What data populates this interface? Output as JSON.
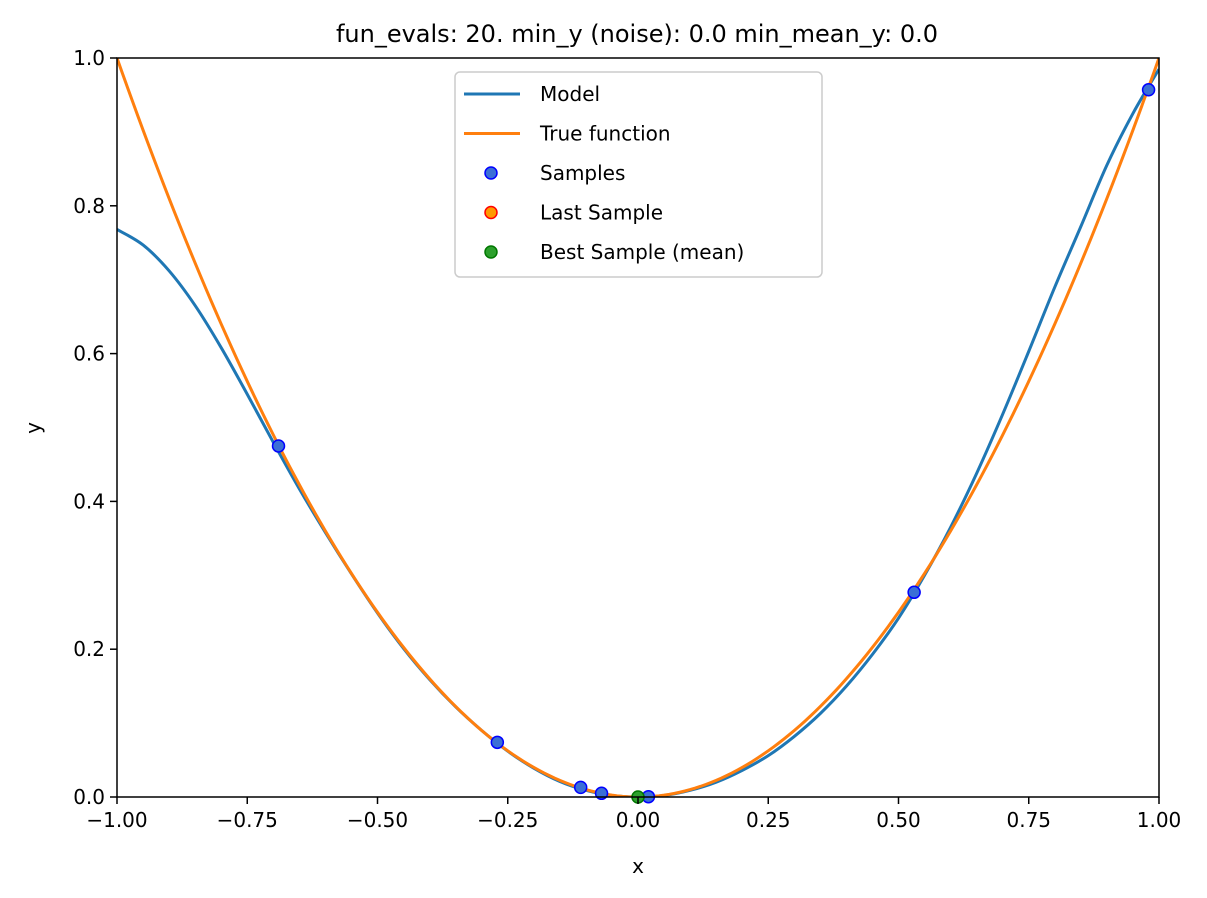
{
  "chart_data": {
    "type": "line",
    "title": "fun_evals: 20. min_y (noise): 0.0 min_mean_y: 0.0",
    "xlabel": "x",
    "ylabel": "y",
    "xlim": [
      -1.0,
      1.0
    ],
    "ylim": [
      0.0,
      1.0
    ],
    "x_ticks": [
      "−1.00",
      "−0.75",
      "−0.50",
      "−0.25",
      "0.00",
      "0.25",
      "0.50",
      "0.75",
      "1.00"
    ],
    "x_tick_values": [
      -1.0,
      -0.75,
      -0.5,
      -0.25,
      0.0,
      0.25,
      0.5,
      0.75,
      1.0
    ],
    "y_ticks": [
      "0.0",
      "0.2",
      "0.4",
      "0.6",
      "0.8",
      "1.0"
    ],
    "y_tick_values": [
      0.0,
      0.2,
      0.4,
      0.6,
      0.8,
      1.0
    ],
    "grid": false,
    "legend_position": "upper-center",
    "series": [
      {
        "name": "Model",
        "kind": "line",
        "color": "#1f77b4",
        "x": [
          -1.0,
          -0.95,
          -0.9,
          -0.85,
          -0.8,
          -0.75,
          -0.7,
          -0.65,
          -0.6,
          -0.55,
          -0.5,
          -0.45,
          -0.4,
          -0.35,
          -0.3,
          -0.25,
          -0.2,
          -0.15,
          -0.1,
          -0.05,
          0.0,
          0.05,
          0.1,
          0.15,
          0.2,
          0.25,
          0.3,
          0.35,
          0.4,
          0.45,
          0.5,
          0.55,
          0.6,
          0.65,
          0.7,
          0.75,
          0.8,
          0.85,
          0.9,
          0.95,
          1.0
        ],
        "y": [
          0.768,
          0.747,
          0.712,
          0.665,
          0.608,
          0.545,
          0.48,
          0.417,
          0.358,
          0.302,
          0.249,
          0.201,
          0.159,
          0.122,
          0.09,
          0.062,
          0.039,
          0.021,
          0.009,
          0.002,
          0.0,
          0.002,
          0.009,
          0.02,
          0.036,
          0.056,
          0.082,
          0.113,
          0.15,
          0.193,
          0.242,
          0.3,
          0.365,
          0.438,
          0.518,
          0.603,
          0.69,
          0.772,
          0.855,
          0.925,
          0.985
        ]
      },
      {
        "name": "True function",
        "kind": "line",
        "color": "#ff7f0e",
        "function": "x^2",
        "x": [
          -1.0,
          -0.95,
          -0.9,
          -0.85,
          -0.8,
          -0.75,
          -0.7,
          -0.65,
          -0.6,
          -0.55,
          -0.5,
          -0.45,
          -0.4,
          -0.35,
          -0.3,
          -0.25,
          -0.2,
          -0.15,
          -0.1,
          -0.05,
          0.0,
          0.05,
          0.1,
          0.15,
          0.2,
          0.25,
          0.3,
          0.35,
          0.4,
          0.45,
          0.5,
          0.55,
          0.6,
          0.65,
          0.7,
          0.75,
          0.8,
          0.85,
          0.9,
          0.95,
          1.0
        ],
        "y": [
          1.0,
          0.9025,
          0.81,
          0.7225,
          0.64,
          0.5625,
          0.49,
          0.4225,
          0.36,
          0.3025,
          0.25,
          0.2025,
          0.16,
          0.1225,
          0.09,
          0.0625,
          0.04,
          0.0225,
          0.01,
          0.0025,
          0.0,
          0.0025,
          0.01,
          0.0225,
          0.04,
          0.0625,
          0.09,
          0.1225,
          0.16,
          0.2025,
          0.25,
          0.3025,
          0.36,
          0.4225,
          0.49,
          0.5625,
          0.64,
          0.7225,
          0.81,
          0.9025,
          1.0
        ]
      },
      {
        "name": "Samples",
        "kind": "scatter",
        "color": "#0000ff",
        "fill": "#3b6fd6",
        "x": [
          -0.69,
          -0.27,
          -0.11,
          -0.07,
          0.02,
          0.53,
          0.98
        ],
        "y": [
          0.475,
          0.074,
          0.013,
          0.005,
          0.0004,
          0.277,
          0.957
        ]
      },
      {
        "name": "Last Sample",
        "kind": "scatter",
        "color": "#ff0000",
        "fill": "#ff9900",
        "x": [],
        "y": []
      },
      {
        "name": "Best Sample (mean)",
        "kind": "scatter",
        "color": "#007700",
        "fill": "#2ca02c",
        "x": [
          0.0
        ],
        "y": [
          0.0
        ]
      }
    ]
  }
}
